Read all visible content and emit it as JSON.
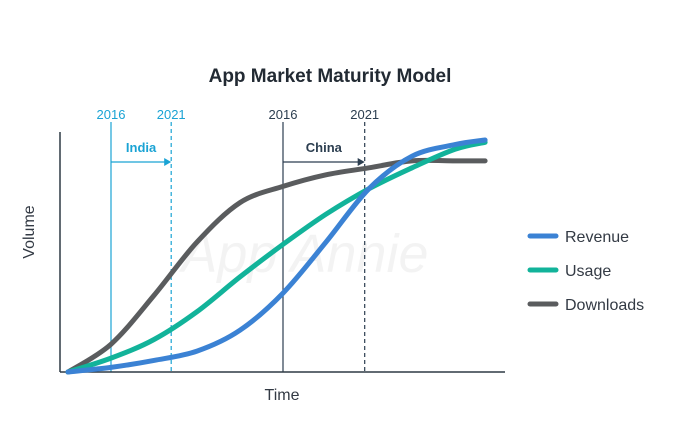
{
  "chart_data": {
    "type": "line",
    "title": "App Market Maturity Model",
    "xlabel": "Time",
    "ylabel": "Volume",
    "xlim": [
      0,
      100
    ],
    "ylim": [
      0,
      100
    ],
    "grid": false,
    "legend_position": "right",
    "watermark": "App Annie",
    "series": [
      {
        "name": "Revenue",
        "color": "#3b82d4",
        "x": [
          0,
          10,
          20,
          30,
          40,
          50,
          60,
          70,
          80,
          90,
          97
        ],
        "y": [
          0,
          2,
          5,
          9,
          18,
          34,
          56,
          79,
          93,
          98,
          100
        ]
      },
      {
        "name": "Usage",
        "color": "#12b39a",
        "x": [
          0,
          10,
          20,
          30,
          40,
          50,
          60,
          70,
          80,
          90,
          97
        ],
        "y": [
          0,
          6,
          14,
          26,
          41,
          55,
          68,
          79,
          88,
          96,
          99
        ]
      },
      {
        "name": "Downloads",
        "color": "#5a5c5e",
        "x": [
          0,
          10,
          20,
          30,
          40,
          50,
          60,
          70,
          80,
          90,
          97
        ],
        "y": [
          0,
          12,
          33,
          56,
          73,
          80,
          85,
          88,
          91,
          91,
          91
        ]
      }
    ],
    "markets": [
      {
        "name": "India",
        "start": {
          "label": "2016",
          "x": 10
        },
        "end": {
          "label": "2021",
          "x": 24
        },
        "color": "#1aa3d4"
      },
      {
        "name": "China",
        "start": {
          "label": "2016",
          "x": 50
        },
        "end": {
          "label": "2021",
          "x": 69
        },
        "color": "#2c3e50"
      }
    ]
  }
}
